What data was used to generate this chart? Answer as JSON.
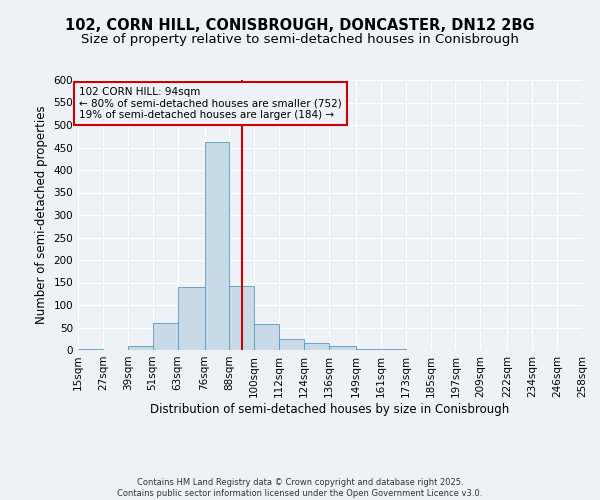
{
  "title1": "102, CORN HILL, CONISBROUGH, DONCASTER, DN12 2BG",
  "title2": "Size of property relative to semi-detached houses in Conisbrough",
  "xlabel": "Distribution of semi-detached houses by size in Conisbrough",
  "ylabel": "Number of semi-detached properties",
  "footer1": "Contains HM Land Registry data © Crown copyright and database right 2025.",
  "footer2": "Contains public sector information licensed under the Open Government Licence v3.0.",
  "bins": [
    15,
    27,
    39,
    51,
    63,
    76,
    88,
    100,
    112,
    124,
    136,
    149,
    161,
    173,
    185,
    197,
    209,
    222,
    234,
    246,
    258
  ],
  "bin_labels": [
    "15sqm",
    "27sqm",
    "39sqm",
    "51sqm",
    "63sqm",
    "76sqm",
    "88sqm",
    "100sqm",
    "112sqm",
    "124sqm",
    "136sqm",
    "149sqm",
    "161sqm",
    "173sqm",
    "185sqm",
    "197sqm",
    "209sqm",
    "222sqm",
    "234sqm",
    "246sqm",
    "258sqm"
  ],
  "counts": [
    3,
    1,
    8,
    60,
    140,
    462,
    142,
    57,
    25,
    15,
    10,
    3,
    2,
    1,
    1,
    0,
    0,
    1,
    0,
    1
  ],
  "bar_color": "#c8d9e8",
  "bar_edge_color": "#5a9abf",
  "subject_value": 94,
  "subject_label": "102 CORN HILL: 94sqm",
  "pct_smaller": 80,
  "n_smaller": 752,
  "pct_larger": 19,
  "n_larger": 184,
  "vline_color": "#cc0000",
  "ylim": [
    0,
    600
  ],
  "yticks": [
    0,
    50,
    100,
    150,
    200,
    250,
    300,
    350,
    400,
    450,
    500,
    550,
    600
  ],
  "bg_color": "#eef2f7",
  "grid_color": "#ffffff",
  "title_fontsize": 10.5,
  "subtitle_fontsize": 9.5,
  "axis_label_fontsize": 8.5,
  "tick_fontsize": 7.5,
  "ann_fontsize": 7.5,
  "footer_fontsize": 6.0
}
